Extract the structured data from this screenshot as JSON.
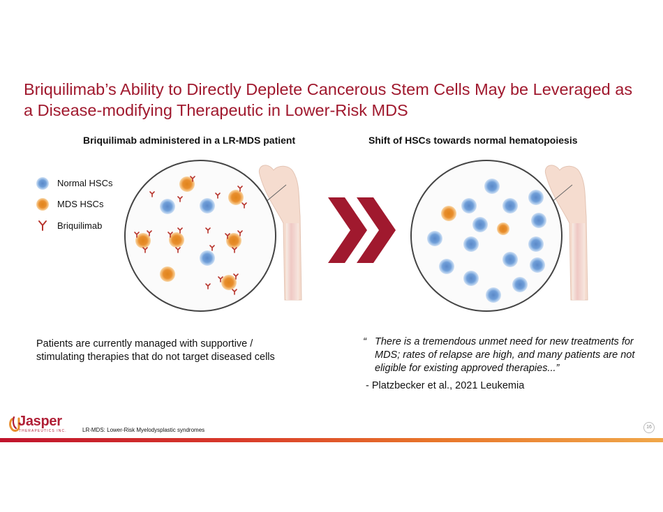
{
  "slide": {
    "title": "Briquilimab’s Ability to Directly Deplete Cancerous Stem Cells May be Leveraged as a Disease-modifying Therapeutic in Lower-Risk MDS",
    "left_panel": {
      "subhead": "Briquilimab administered in a LR-MDS patient",
      "legend": [
        {
          "label": "Normal HSCs",
          "icon": "blue-cell-icon",
          "color": "#6f9ed8"
        },
        {
          "label": "MDS HSCs",
          "icon": "orange-cell-icon",
          "color": "#e88e2e"
        },
        {
          "label": "Briquilimab",
          "icon": "antibody-icon",
          "color": "#b7342c"
        }
      ],
      "note": "Patients are currently managed with supportive / stimulating therapies that do not target diseased cells"
    },
    "arrow_icon": "double-chevron-right-icon",
    "right_panel": {
      "subhead": "Shift of HSCs towards normal hematopoiesis",
      "quote_mark": "“",
      "quote": "There is a tremendous unmet need for new treatments for MDS; rates of relapse are high, and many patients are not eligible for existing approved therapies...”",
      "citation": "- Platzbecker et al., 2021 Leukemia"
    }
  },
  "footer": {
    "logo_name": "Jasper",
    "logo_sub": "THERAPEUTICS INC.",
    "footnote": "LR-MDS: Lower-Risk Myelodysplastic syndromes",
    "page_number": "16"
  },
  "colors": {
    "title": "#a0192e",
    "normal_hsc": "#6f9ed8",
    "mds_hsc": "#e88e2e",
    "antibody": "#b7342c",
    "chevron": "#a0192e"
  }
}
